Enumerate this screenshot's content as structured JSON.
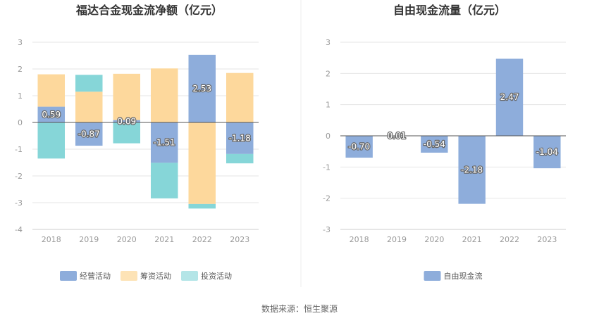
{
  "source_label": "数据来源：恒生聚源",
  "chart_data": [
    {
      "type": "bar",
      "stacked": true,
      "title": "福达合金现金流净额（亿元）",
      "categories": [
        "2018",
        "2019",
        "2020",
        "2021",
        "2022",
        "2023"
      ],
      "ylim": [
        -4,
        3
      ],
      "yticks": [
        "3",
        "2",
        "1",
        "0",
        "-1",
        "-2",
        "-3",
        "-4"
      ],
      "grid": true,
      "legend_position": "bottom",
      "series": [
        {
          "name": "经营活动",
          "color": "#8eaddb",
          "values": [
            0.59,
            -0.87,
            0.09,
            -1.51,
            2.53,
            -1.18
          ],
          "labels": [
            "0.59",
            "-0.87",
            "0.09",
            "-1.51",
            "2.53",
            "-1.18"
          ]
        },
        {
          "name": "筹资活动",
          "color": "#fdd89c",
          "values": [
            1.21,
            1.15,
            1.73,
            2.02,
            -3.05,
            1.85
          ]
        },
        {
          "name": "投资活动",
          "color": "#86d6d8",
          "values": [
            -1.35,
            0.63,
            -0.78,
            -1.33,
            -0.17,
            -0.35
          ]
        }
      ],
      "legend_colors": [
        "#8eaddb",
        "#fde3b6",
        "#b4e5e7"
      ]
    },
    {
      "type": "bar",
      "title": "自由现金流量（亿元）",
      "categories": [
        "2018",
        "2019",
        "2020",
        "2021",
        "2022",
        "2023"
      ],
      "ylim": [
        -3,
        3
      ],
      "yticks": [
        "3",
        "2",
        "1",
        "0",
        "-1",
        "-2",
        "-3"
      ],
      "grid": true,
      "legend_position": "bottom",
      "series": [
        {
          "name": "自由现金流",
          "color": "#8eaddb",
          "values": [
            -0.7,
            0.01,
            -0.54,
            -2.18,
            2.47,
            -1.04
          ],
          "labels": [
            "-0.70",
            "0.01",
            "-0.54",
            "-2.18",
            "2.47",
            "-1.04"
          ]
        }
      ]
    }
  ]
}
